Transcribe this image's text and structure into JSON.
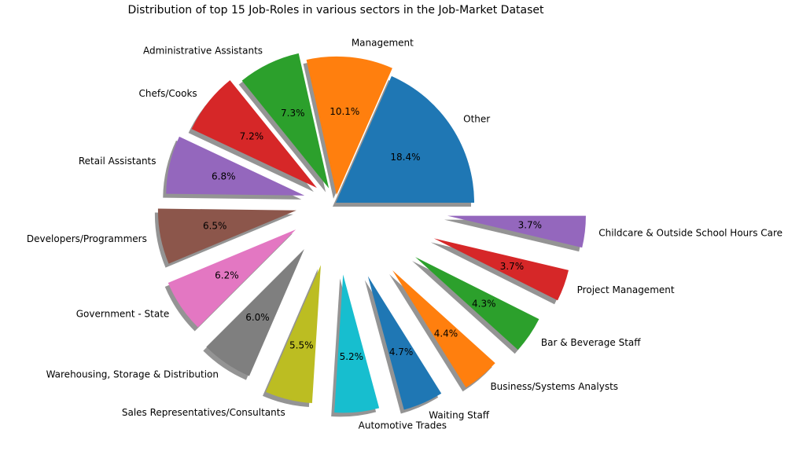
{
  "chart_data": {
    "type": "pie",
    "title": "Distribution of top 15 Job-Roles in various sectors in the Job-Market Dataset",
    "categories": [
      "Other",
      "Management",
      "Administrative Assistants",
      "Chefs/Cooks",
      "Retail Assistants",
      "Developers/Programmers",
      "Government - State",
      "Warehousing, Storage & Distribution",
      "Sales Representatives/Consultants",
      "Automotive Trades",
      "Waiting Staff",
      "Business/Systems Analysts",
      "Bar & Beverage Staff",
      "Project Management",
      "Childcare & Outside School Hours Care"
    ],
    "values": [
      18.4,
      10.1,
      7.3,
      7.2,
      6.8,
      6.5,
      6.2,
      6.0,
      5.5,
      5.2,
      4.7,
      4.4,
      4.3,
      3.7,
      3.7
    ],
    "value_labels": [
      "18.4%",
      "10.1%",
      "7.3%",
      "7.2%",
      "6.8%",
      "6.5%",
      "6.2%",
      "6.0%",
      "5.5%",
      "5.2%",
      "4.7%",
      "4.4%",
      "4.3%",
      "3.7%",
      "3.7%"
    ],
    "colors": [
      "#1f77b4",
      "#ff7f0e",
      "#2ca02c",
      "#d62728",
      "#9467bd",
      "#8c564b",
      "#e377c2",
      "#7f7f7f",
      "#bcbd22",
      "#17becf",
      "#1f77b4",
      "#ff7f0e",
      "#2ca02c",
      "#d62728",
      "#9467bd"
    ],
    "shadow": true
  }
}
